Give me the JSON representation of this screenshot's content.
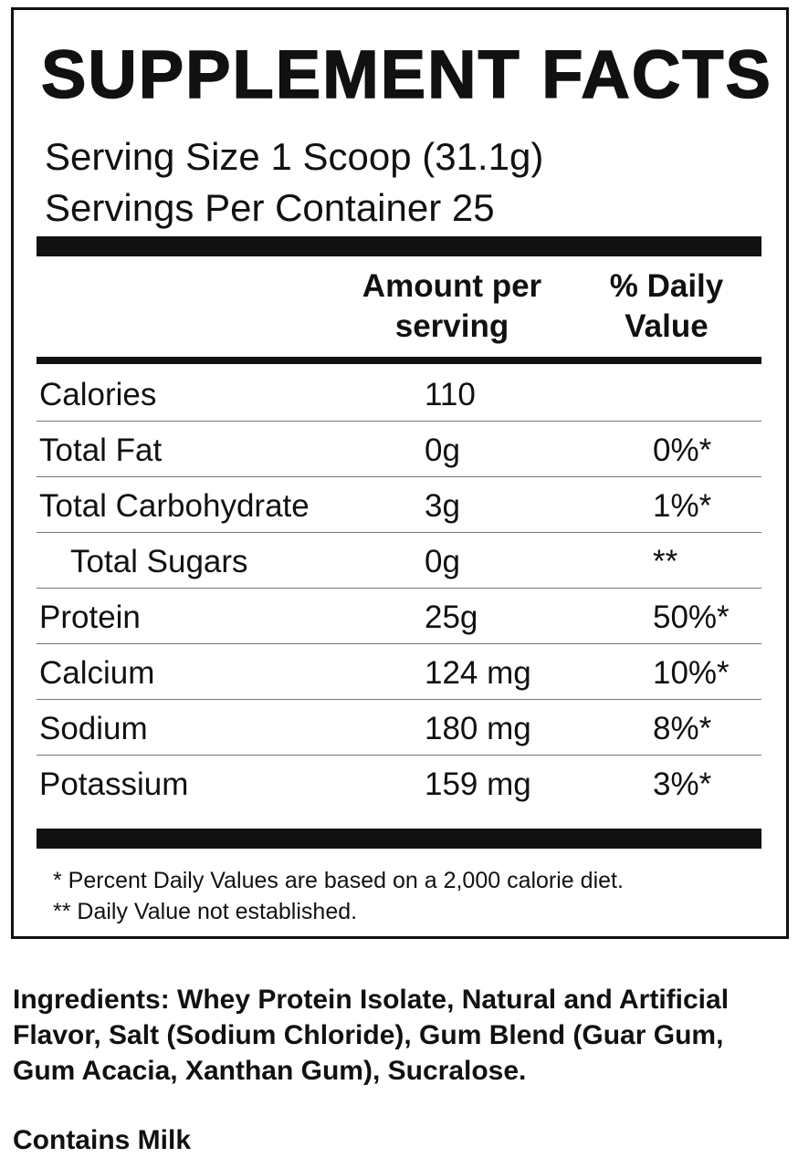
{
  "label": {
    "title": "SUPPLEMENT FACTS",
    "serving_size": "Serving Size 1 Scoop (31.1g)",
    "servings_per_container": "Servings Per Container 25",
    "columns": {
      "amount_line1": "Amount per",
      "amount_line2": "serving",
      "dv_line1": "% Daily",
      "dv_line2": "Value"
    },
    "rows": [
      {
        "name": "Calories",
        "amount": "110",
        "dv": ""
      },
      {
        "name": "Total Fat",
        "amount": "0g",
        "dv": "0%*"
      },
      {
        "name": "Total Carbohydrate",
        "amount": "3g",
        "dv": "1%*"
      },
      {
        "name": "Total Sugars",
        "amount": "0g",
        "dv": "**"
      },
      {
        "name": "Protein",
        "amount": "25g",
        "dv": "50%*"
      },
      {
        "name": "Calcium",
        "amount": "124 mg",
        "dv": "10%*"
      },
      {
        "name": "Sodium",
        "amount": "180 mg",
        "dv": "8%*"
      },
      {
        "name": "Potassium",
        "amount": "159 mg",
        "dv": "3%*"
      }
    ],
    "footnote1": "* Percent Daily Values are based on a 2,000 calorie diet.",
    "footnote2": "** Daily Value not established."
  },
  "ingredients": {
    "label": "Ingredients:",
    "text": " Whey Protein Isolate, Natural and Artificial Flavor, Salt (Sodium Chloride), Gum Blend (Guar Gum, Gum Acacia, Xanthan Gum), Sucralose."
  },
  "allergen": "Contains Milk"
}
